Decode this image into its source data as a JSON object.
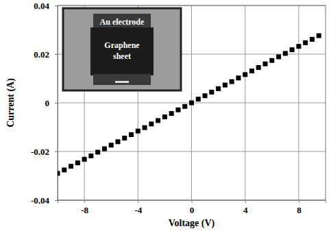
{
  "chart_data": {
    "type": "scatter",
    "x_label": "Voltage (V)",
    "y_label": "Current (A)",
    "annotations": [
      "Au electrode",
      "Graphene sheet"
    ],
    "x": [
      -10,
      -9.5,
      -9,
      -8.5,
      -8,
      -7.5,
      -7,
      -6.5,
      -6,
      -5.5,
      -5,
      -4.5,
      -4,
      -3.5,
      -3,
      -2.5,
      -2,
      -1.5,
      -1,
      -0.5,
      0,
      0.5,
      1,
      1.5,
      2,
      2.5,
      3,
      3.5,
      4,
      4.5,
      5,
      5.5,
      6,
      6.5,
      7,
      7.5,
      8,
      8.5,
      9,
      9.5
    ],
    "values": [
      -0.029,
      -0.0276,
      -0.0261,
      -0.0247,
      -0.0232,
      -0.0218,
      -0.0203,
      -0.0189,
      -0.0174,
      -0.016,
      -0.0145,
      -0.0131,
      -0.0116,
      -0.0102,
      -0.0087,
      -0.0073,
      -0.0058,
      -0.0044,
      -0.0029,
      -0.0015,
      0,
      0.0015,
      0.0029,
      0.0044,
      0.0058,
      0.0073,
      0.0087,
      0.0102,
      0.0116,
      0.0131,
      0.0145,
      0.016,
      0.0174,
      0.0189,
      0.0203,
      0.0218,
      0.0232,
      0.0247,
      0.0261,
      0.0276
    ],
    "color": "#000000",
    "marker": "square",
    "xlim": [
      -10,
      10
    ],
    "xticks": [
      -8,
      -4,
      0,
      4,
      8
    ],
    "ylim": [
      -0.04,
      0.04
    ],
    "yticks": [
      -0.04,
      -0.02,
      0,
      0.02,
      0.04
    ],
    "grid": true
  }
}
